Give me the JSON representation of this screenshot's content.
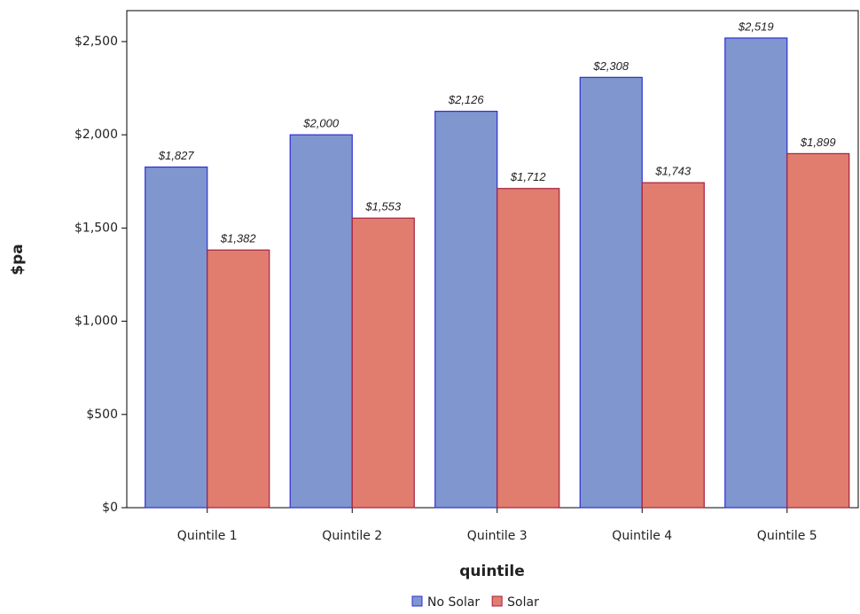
{
  "chart_data": {
    "type": "bar",
    "x_label": "quintile",
    "y_label": "$pa",
    "categories": [
      "Quintile 1",
      "Quintile 2",
      "Quintile 3",
      "Quintile 4",
      "Quintile 5"
    ],
    "series": [
      {
        "name": "No Solar",
        "color": "#7f96cf",
        "edge": "#2f2fd0",
        "values": [
          1827,
          2000,
          2126,
          2308,
          2519
        ],
        "value_labels": [
          "$1,827",
          "$2,000",
          "$2,126",
          "$2,308",
          "$2,519"
        ]
      },
      {
        "name": "Solar",
        "color": "#e07d6f",
        "edge": "#a42040",
        "values": [
          1382,
          1553,
          1712,
          1743,
          1899
        ],
        "value_labels": [
          "$1,382",
          "$1,553",
          "$1,712",
          "$1,743",
          "$1,899"
        ]
      }
    ],
    "ylim": [
      0,
      2666
    ],
    "yticks": [
      {
        "value": 0,
        "label": "$0"
      },
      {
        "value": 500,
        "label": "$500"
      },
      {
        "value": 1000,
        "label": "$1,000"
      },
      {
        "value": 1500,
        "label": "$1,500"
      },
      {
        "value": 2000,
        "label": "$2,000"
      },
      {
        "value": 2500,
        "label": "$2,500"
      }
    ],
    "legend": "bottom"
  }
}
